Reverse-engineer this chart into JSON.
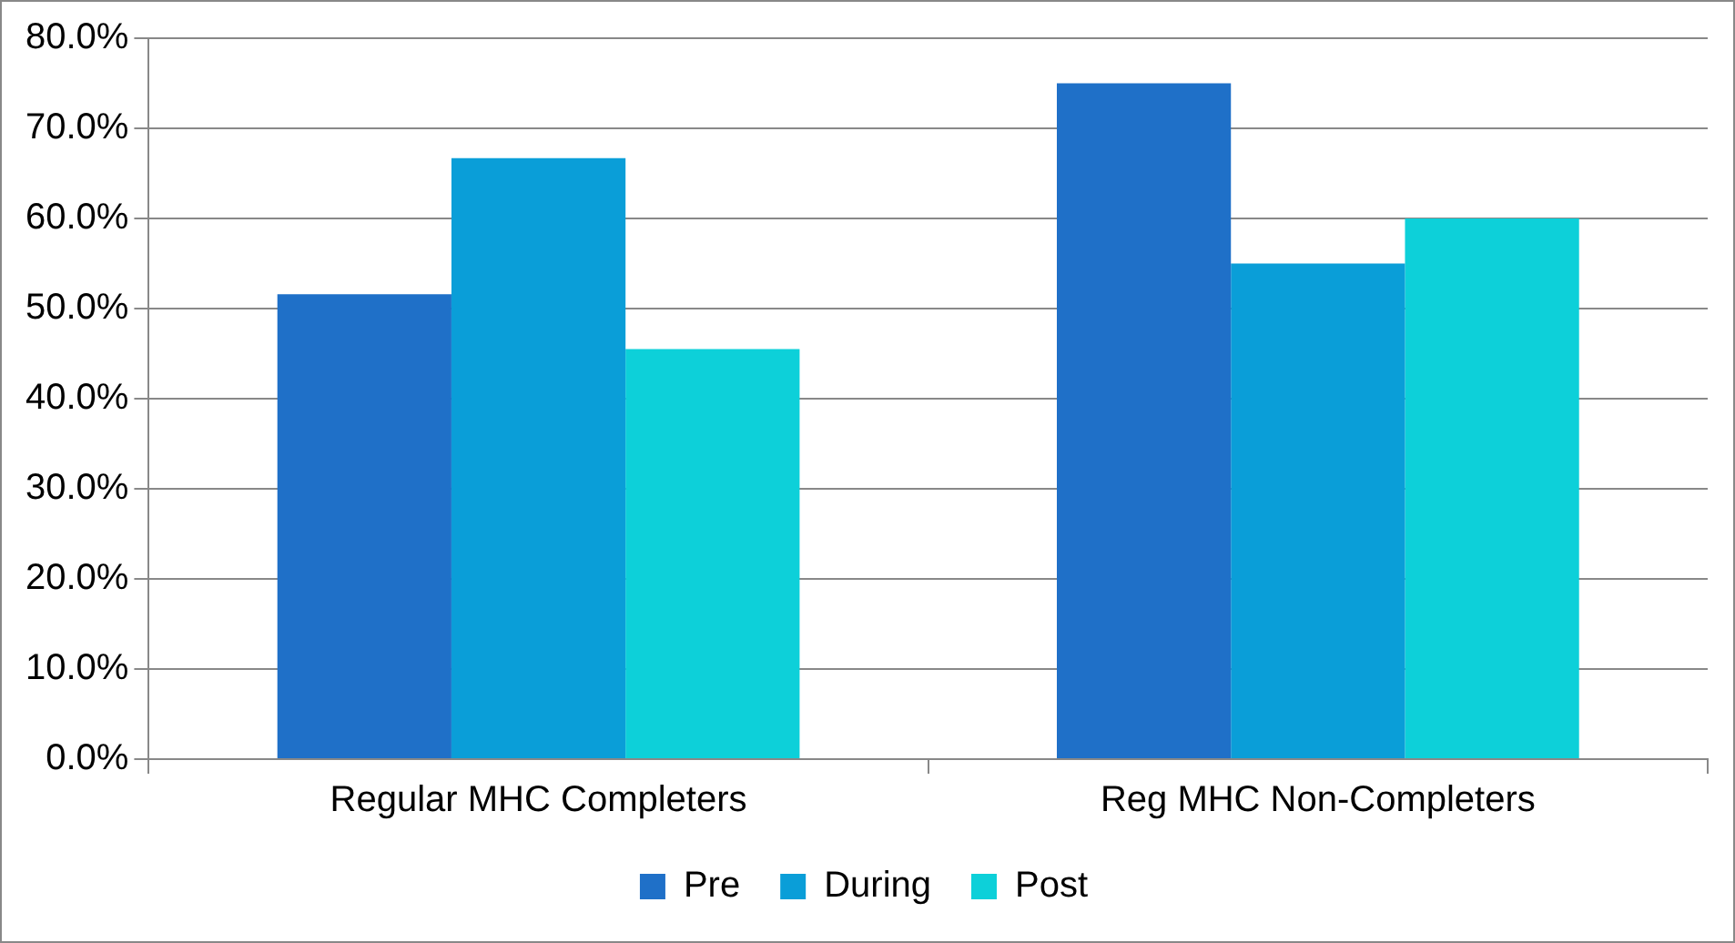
{
  "chart_data": {
    "type": "bar",
    "categories": [
      "Regular MHC Completers",
      "Reg MHC Non-Completers"
    ],
    "series": [
      {
        "name": "Pre",
        "color": "#1f70c8",
        "values": [
          51.6,
          75
        ]
      },
      {
        "name": "During",
        "color": "#0a9ed8",
        "values": [
          66.7,
          55
        ]
      },
      {
        "name": "Post",
        "color": "#0dd0d9",
        "values": [
          45.5,
          60
        ]
      }
    ],
    "ylim": [
      0,
      80
    ],
    "yticks": [
      {
        "value": 0,
        "label": "0.0%"
      },
      {
        "value": 10,
        "label": "10.0%"
      },
      {
        "value": 20,
        "label": "20.0%"
      },
      {
        "value": 30,
        "label": "30.0%"
      },
      {
        "value": 40,
        "label": "40.0%"
      },
      {
        "value": 50,
        "label": "50.0%"
      },
      {
        "value": 60,
        "label": "60.0%"
      },
      {
        "value": 70,
        "label": "70.0%"
      },
      {
        "value": 80,
        "label": "80.0%"
      }
    ],
    "grid": "y",
    "legend": "bottom"
  }
}
